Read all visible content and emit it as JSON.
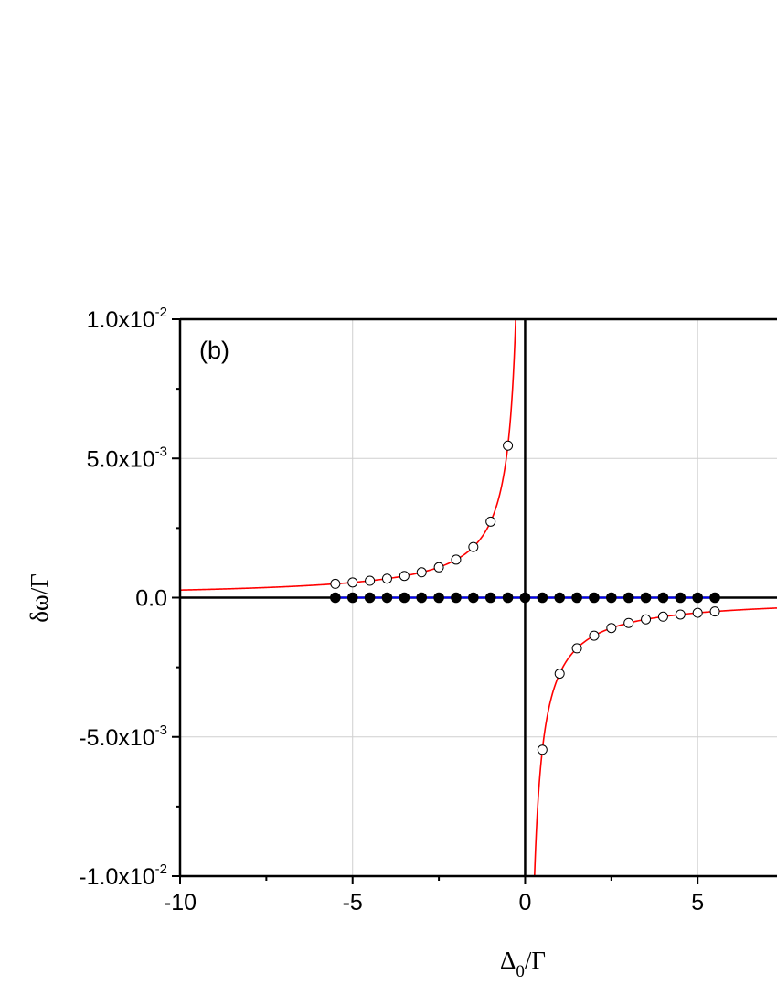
{
  "chart_data": {
    "type": "line",
    "panel_label": "(b)",
    "xlabel": {
      "main": "Δ",
      "sub": "0",
      "tail": "/Γ"
    },
    "ylabel": "δω/Γ",
    "xlim": [
      -10,
      7.3
    ],
    "ylim": [
      -0.01,
      0.01
    ],
    "x_ticks": [
      -10,
      -5,
      0,
      5
    ],
    "x_tick_labels": [
      "-10",
      "-5",
      "0",
      "5"
    ],
    "x_minor_ticks": [
      -7.5,
      -2.5,
      2.5
    ],
    "y_ticks": [
      -0.01,
      -0.005,
      0,
      0.005,
      0.01
    ],
    "y_tick_labels": [
      {
        "mant": "-1.0x10",
        "exp": "-2"
      },
      {
        "mant": "-5.0x10",
        "exp": "-3"
      },
      {
        "mant": "0.0",
        "exp": ""
      },
      {
        "mant": "5.0x10",
        "exp": "-3"
      },
      {
        "mant": "1.0x10",
        "exp": "-2"
      }
    ],
    "y_minor_ticks": [
      -0.0075,
      -0.0025,
      0.0025,
      0.0075
    ],
    "grid": true,
    "zero_lines": true,
    "series": [
      {
        "kind": "curve",
        "color": "#ff0000",
        "formula": "-0.00273 / x",
        "x_range": [
          -10,
          7.3
        ]
      },
      {
        "kind": "curve",
        "color": "#0000ff",
        "formula": "0",
        "x_range": [
          -5.5,
          5.5
        ]
      },
      {
        "kind": "markers",
        "marker": "open-circle",
        "x": [
          -5.5,
          -5.0,
          -4.5,
          -4.0,
          -3.5,
          -3.0,
          -2.5,
          -2.0,
          -1.5,
          -1.0,
          -0.5,
          0.5,
          1.0,
          1.5,
          2.0,
          2.5,
          3.0,
          3.5,
          4.0,
          4.5,
          5.0,
          5.5
        ],
        "y": [
          0.000496,
          0.000546,
          0.000607,
          0.000683,
          0.00078,
          0.00091,
          0.00109,
          0.001365,
          0.00182,
          0.00273,
          0.00546,
          -0.00546,
          -0.00273,
          -0.00182,
          -0.001365,
          -0.00109,
          -0.00091,
          -0.00078,
          -0.000683,
          -0.000607,
          -0.000546,
          -0.000496
        ]
      },
      {
        "kind": "markers",
        "marker": "filled-circle",
        "x": [
          -5.5,
          -5.0,
          -4.5,
          -4.0,
          -3.5,
          -3.0,
          -2.5,
          -2.0,
          -1.5,
          -1.0,
          -0.5,
          0.0,
          0.5,
          1.0,
          1.5,
          2.0,
          2.5,
          3.0,
          3.5,
          4.0,
          4.5,
          5.0,
          5.5
        ],
        "y": [
          0,
          0,
          0,
          0,
          0,
          0,
          0,
          0,
          0,
          0,
          0,
          0,
          0,
          0,
          0,
          0,
          0,
          0,
          0,
          0,
          0,
          0,
          0
        ]
      }
    ]
  }
}
